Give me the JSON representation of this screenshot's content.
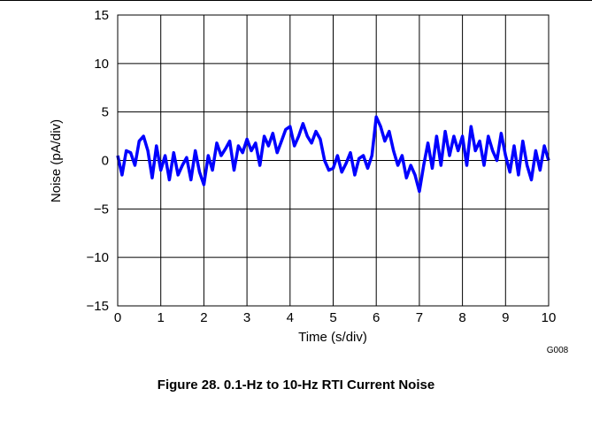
{
  "chart_data": {
    "type": "line",
    "xlabel": "Time (s/div)",
    "ylabel": "Noise (pA/div)",
    "xlim": [
      0,
      10
    ],
    "ylim": [
      -15,
      15
    ],
    "x_ticks": [
      "0",
      "1",
      "2",
      "3",
      "4",
      "5",
      "6",
      "7",
      "8",
      "9",
      "10"
    ],
    "y_ticks": [
      "15",
      "10",
      "5",
      "0",
      "−5",
      "−10",
      "−15"
    ],
    "grid": true,
    "graph_id": "G008",
    "series": [
      {
        "color": "#0000ff",
        "x": [
          0,
          0.1,
          0.2,
          0.3,
          0.4,
          0.5,
          0.6,
          0.7,
          0.8,
          0.9,
          1.0,
          1.1,
          1.2,
          1.3,
          1.4,
          1.5,
          1.6,
          1.7,
          1.8,
          1.9,
          2.0,
          2.1,
          2.2,
          2.3,
          2.4,
          2.5,
          2.6,
          2.7,
          2.8,
          2.9,
          3.0,
          3.1,
          3.2,
          3.3,
          3.4,
          3.5,
          3.6,
          3.7,
          3.8,
          3.9,
          4.0,
          4.1,
          4.2,
          4.3,
          4.4,
          4.5,
          4.6,
          4.7,
          4.8,
          4.9,
          5.0,
          5.1,
          5.2,
          5.3,
          5.4,
          5.5,
          5.6,
          5.7,
          5.8,
          5.9,
          6.0,
          6.1,
          6.2,
          6.3,
          6.4,
          6.5,
          6.6,
          6.7,
          6.8,
          6.9,
          7.0,
          7.1,
          7.2,
          7.3,
          7.4,
          7.5,
          7.6,
          7.7,
          7.8,
          7.9,
          8.0,
          8.1,
          8.2,
          8.3,
          8.4,
          8.5,
          8.6,
          8.7,
          8.8,
          8.9,
          9.0,
          9.1,
          9.2,
          9.3,
          9.4,
          9.5,
          9.6,
          9.7,
          9.8,
          9.9,
          10.0
        ],
        "values": [
          0.5,
          -1.5,
          1.0,
          0.8,
          -0.5,
          2.0,
          2.5,
          1.0,
          -1.8,
          1.5,
          -1.0,
          0.5,
          -2.0,
          0.8,
          -1.5,
          -0.5,
          0.3,
          -2.0,
          1.0,
          -1.2,
          -2.5,
          0.5,
          -1.0,
          1.8,
          0.5,
          1.2,
          2.0,
          -1.0,
          1.5,
          0.8,
          2.2,
          1.0,
          1.8,
          -0.5,
          2.5,
          1.5,
          2.8,
          0.8,
          2.0,
          3.2,
          3.5,
          1.5,
          2.5,
          3.8,
          2.5,
          1.8,
          3.0,
          2.2,
          0.0,
          -1.0,
          -0.8,
          0.5,
          -1.2,
          -0.3,
          0.8,
          -1.5,
          0.2,
          0.5,
          -0.8,
          0.5,
          4.5,
          3.5,
          2.0,
          3.0,
          1.0,
          -0.5,
          0.5,
          -1.8,
          -0.5,
          -1.5,
          -3.2,
          -0.5,
          1.8,
          -0.8,
          2.5,
          -0.5,
          3.0,
          0.5,
          2.5,
          1.0,
          2.5,
          -0.5,
          3.5,
          1.0,
          2.0,
          -0.5,
          2.5,
          1.0,
          0.0,
          2.8,
          0.5,
          -1.2,
          1.5,
          -1.5,
          2.0,
          -0.5,
          -2.0,
          1.0,
          -1.0,
          1.5,
          0.0
        ]
      }
    ]
  },
  "figure_caption": "Figure 28. 0.1-Hz to 10-Hz RTI Current Noise"
}
